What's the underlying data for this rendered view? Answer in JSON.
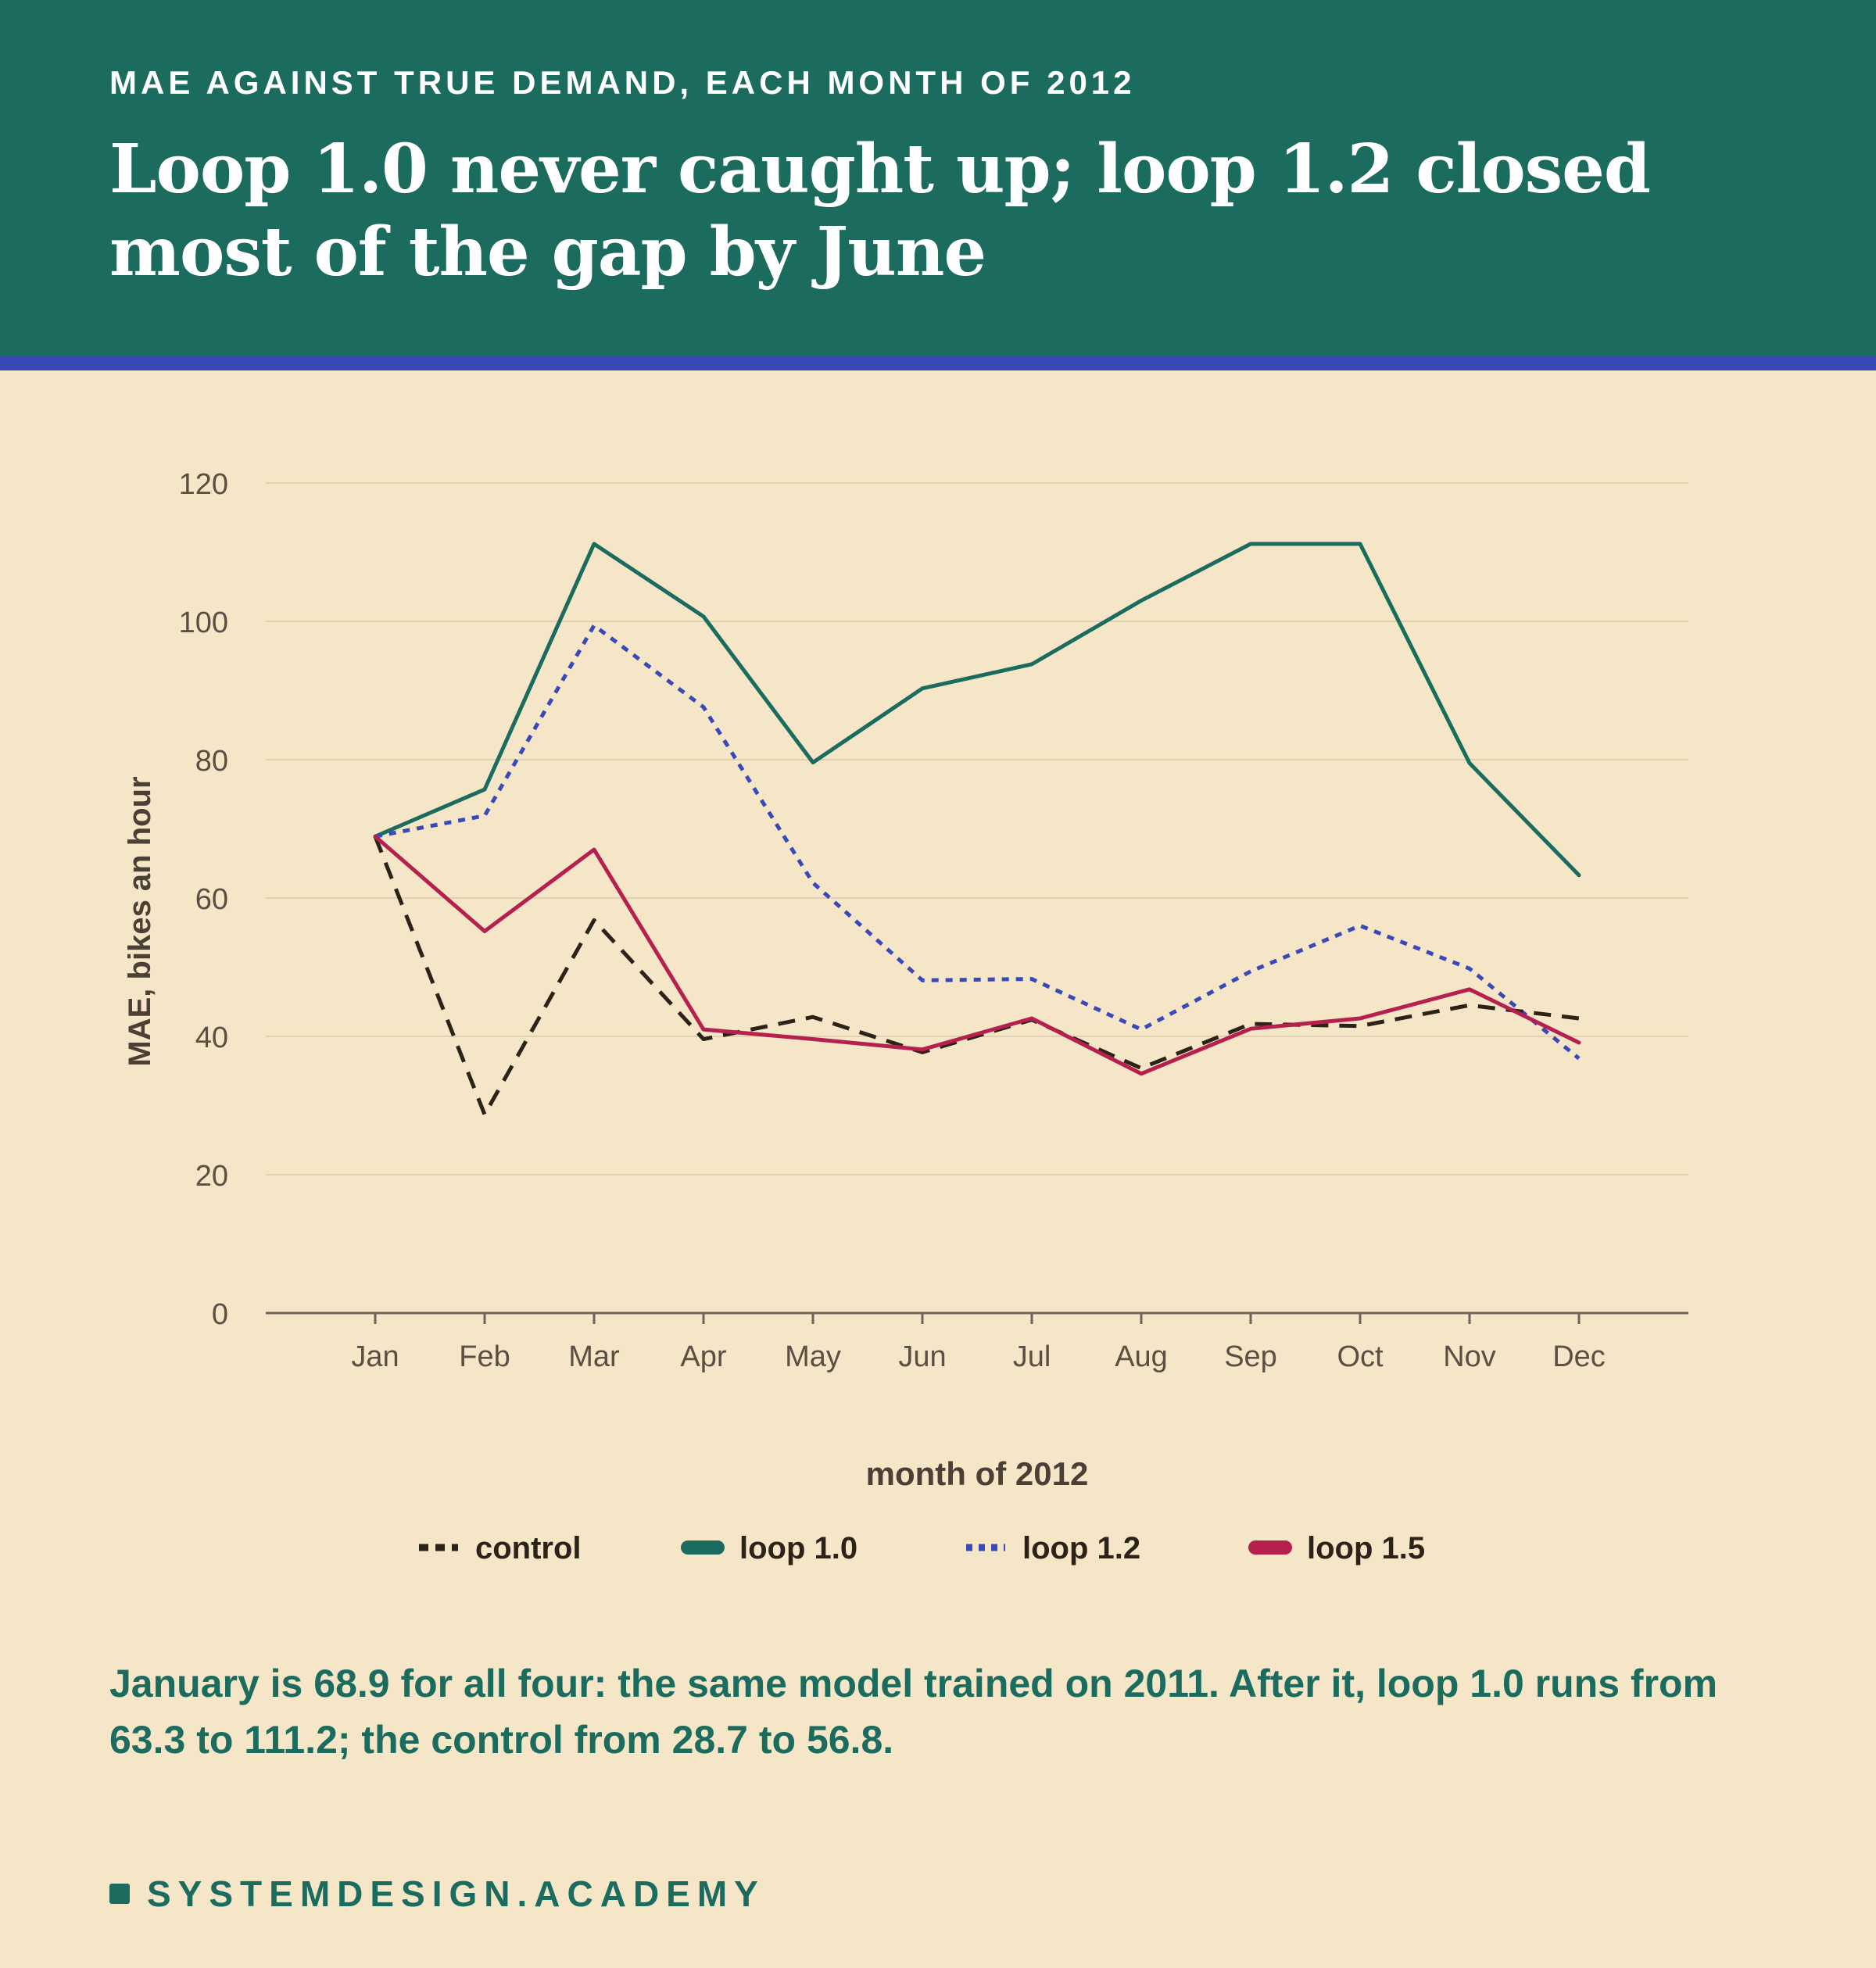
{
  "header": {
    "kicker": "MAE AGAINST TRUE DEMAND, EACH MONTH OF 2012",
    "headline": "Loop 1.0 never caught up; loop 1.2 closed most of the gap by June"
  },
  "caption": "January is 68.9 for all four: the same model trained on 2011. After it, loop 1.0 runs from 63.3 to 111.2; the control from 28.7 to 56.8.",
  "brand": {
    "name": "SYSTEMDESIGN.ACADEMY"
  },
  "colors": {
    "header_bg": "#1b6b5e",
    "accent_rule": "#3a49b8",
    "background": "#f5e6c8",
    "control": "#2b2318",
    "loop_1_0": "#1b6b5e",
    "loop_1_2": "#3a49b8",
    "loop_1_5": "#b5204e"
  },
  "chart_data": {
    "type": "line",
    "title": "",
    "xlabel": "month of 2012",
    "ylabel": "MAE, bikes an hour",
    "ylim": [
      0,
      120
    ],
    "yticks": [
      0,
      20,
      40,
      60,
      80,
      100,
      120
    ],
    "grid": true,
    "legend_position": "bottom-center",
    "categories": [
      "Jan",
      "Feb",
      "Mar",
      "Apr",
      "May",
      "Jun",
      "Jul",
      "Aug",
      "Sep",
      "Oct",
      "Nov",
      "Dec"
    ],
    "series": [
      {
        "name": "control",
        "style": "dashed",
        "color": "#2b2318",
        "values": [
          68.9,
          28.7,
          56.8,
          39.6,
          42.8,
          37.7,
          42.4,
          35.4,
          41.8,
          41.5,
          44.5,
          42.6
        ]
      },
      {
        "name": "loop 1.0",
        "style": "solid",
        "color": "#1b6b5e",
        "values": [
          68.9,
          75.7,
          111.2,
          100.7,
          79.6,
          90.3,
          93.8,
          103.0,
          111.2,
          111.2,
          79.5,
          63.3
        ]
      },
      {
        "name": "loop 1.2",
        "style": "dotted",
        "color": "#3a49b8",
        "values": [
          68.9,
          71.9,
          99.4,
          87.6,
          62.2,
          48.1,
          48.3,
          41.0,
          49.4,
          56.0,
          49.8,
          36.8
        ]
      },
      {
        "name": "loop 1.5",
        "style": "solid",
        "color": "#b5204e",
        "values": [
          68.9,
          55.2,
          67.0,
          41.0,
          39.6,
          38.1,
          42.6,
          34.6,
          41.1,
          42.6,
          46.8,
          39.1
        ]
      }
    ]
  }
}
